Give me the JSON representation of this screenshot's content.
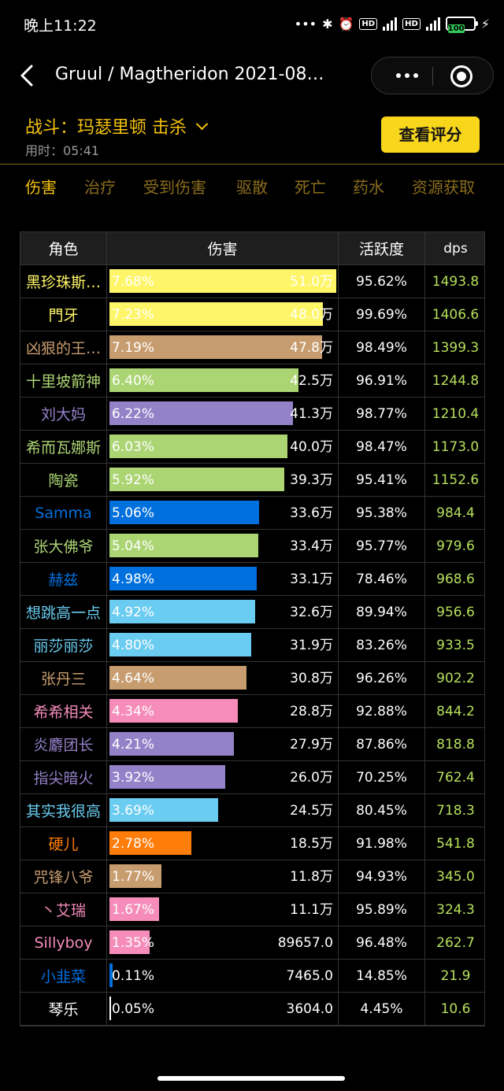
{
  "status": {
    "time": "晚上11:22",
    "battery": "100",
    "hd": "HD",
    "net": "4G"
  },
  "nav": {
    "title": "Gruul / Magtheridon 2021-08…"
  },
  "fight": {
    "label": "战斗：玛瑟里顿 击杀",
    "elapsed": "用时：05:41",
    "rate_button": "查看评分"
  },
  "tabs": [
    "伤害",
    "治疗",
    "受到伤害",
    "驱散",
    "死亡",
    "药水",
    "资源获取"
  ],
  "active_tab": 0,
  "table": {
    "headers": {
      "name": "角色",
      "damage": "伤害",
      "activity": "活跃度",
      "dps": "dps"
    },
    "rows": [
      {
        "name": "黑珍珠斯…",
        "color": "#fff569",
        "pct": "7.68%",
        "share": 7.68,
        "amount": "51.0万",
        "activity": "95.62%",
        "dps": "1493.8"
      },
      {
        "name": "門牙",
        "color": "#fff569",
        "pct": "7.23%",
        "share": 7.23,
        "amount": "48.0万",
        "activity": "99.69%",
        "dps": "1406.6"
      },
      {
        "name": "凶狠的王…",
        "color": "#c79c6e",
        "pct": "7.19%",
        "share": 7.19,
        "amount": "47.8万",
        "activity": "98.49%",
        "dps": "1399.3"
      },
      {
        "name": "十里坡箭神",
        "color": "#abd473",
        "pct": "6.40%",
        "share": 6.4,
        "amount": "42.5万",
        "activity": "96.91%",
        "dps": "1244.8"
      },
      {
        "name": "刘大妈",
        "color": "#9482c9",
        "pct": "6.22%",
        "share": 6.22,
        "amount": "41.3万",
        "activity": "98.77%",
        "dps": "1210.4"
      },
      {
        "name": "希而瓦娜斯",
        "color": "#abd473",
        "pct": "6.03%",
        "share": 6.03,
        "amount": "40.0万",
        "activity": "98.47%",
        "dps": "1173.0"
      },
      {
        "name": "陶瓷",
        "color": "#abd473",
        "pct": "5.92%",
        "share": 5.92,
        "amount": "39.3万",
        "activity": "95.41%",
        "dps": "1152.6"
      },
      {
        "name": "Samma",
        "color": "#0070de",
        "pct": "5.06%",
        "share": 5.06,
        "amount": "33.6万",
        "activity": "95.38%",
        "dps": "984.4"
      },
      {
        "name": "张大佛爷",
        "color": "#abd473",
        "pct": "5.04%",
        "share": 5.04,
        "amount": "33.4万",
        "activity": "95.77%",
        "dps": "979.6"
      },
      {
        "name": "赫兹",
        "color": "#0070de",
        "pct": "4.98%",
        "share": 4.98,
        "amount": "33.1万",
        "activity": "78.46%",
        "dps": "968.6"
      },
      {
        "name": "想跳高一点",
        "color": "#69ccf0",
        "pct": "4.92%",
        "share": 4.92,
        "amount": "32.6万",
        "activity": "89.94%",
        "dps": "956.6"
      },
      {
        "name": "丽莎丽莎",
        "color": "#69ccf0",
        "pct": "4.80%",
        "share": 4.8,
        "amount": "31.9万",
        "activity": "83.26%",
        "dps": "933.5"
      },
      {
        "name": "张丹三",
        "color": "#c79c6e",
        "pct": "4.64%",
        "share": 4.64,
        "amount": "30.8万",
        "activity": "96.26%",
        "dps": "902.2"
      },
      {
        "name": "希希相关",
        "color": "#f58cba",
        "pct": "4.34%",
        "share": 4.34,
        "amount": "28.8万",
        "activity": "92.88%",
        "dps": "844.2"
      },
      {
        "name": "炎麝团长",
        "color": "#9482c9",
        "pct": "4.21%",
        "share": 4.21,
        "amount": "27.9万",
        "activity": "87.86%",
        "dps": "818.8"
      },
      {
        "name": "指尖暗火",
        "color": "#9482c9",
        "pct": "3.92%",
        "share": 3.92,
        "amount": "26.0万",
        "activity": "70.25%",
        "dps": "762.4"
      },
      {
        "name": "其实我很高",
        "color": "#69ccf0",
        "pct": "3.69%",
        "share": 3.69,
        "amount": "24.5万",
        "activity": "80.45%",
        "dps": "718.3"
      },
      {
        "name": "硬儿",
        "color": "#ff7d0a",
        "pct": "2.78%",
        "share": 2.78,
        "amount": "18.5万",
        "activity": "91.98%",
        "dps": "541.8"
      },
      {
        "name": "咒锋八爷",
        "color": "#c79c6e",
        "pct": "1.77%",
        "share": 1.77,
        "amount": "11.8万",
        "activity": "94.93%",
        "dps": "345.0"
      },
      {
        "name": "丶艾瑞",
        "color": "#f58cba",
        "pct": "1.67%",
        "share": 1.67,
        "amount": "11.1万",
        "activity": "95.89%",
        "dps": "324.3"
      },
      {
        "name": "Sillyboy",
        "color": "#f58cba",
        "pct": "1.35%",
        "share": 1.35,
        "amount": "89657.0",
        "activity": "96.48%",
        "dps": "262.7"
      },
      {
        "name": "小韭菜",
        "color": "#0070de",
        "pct": "0.11%",
        "share": 0.11,
        "amount": "7465.0",
        "activity": "14.85%",
        "dps": "21.9"
      },
      {
        "name": "琴乐",
        "color": "#ffffff",
        "pct": "0.05%",
        "share": 0.05,
        "amount": "3604.0",
        "activity": "4.45%",
        "dps": "10.6"
      }
    ]
  }
}
